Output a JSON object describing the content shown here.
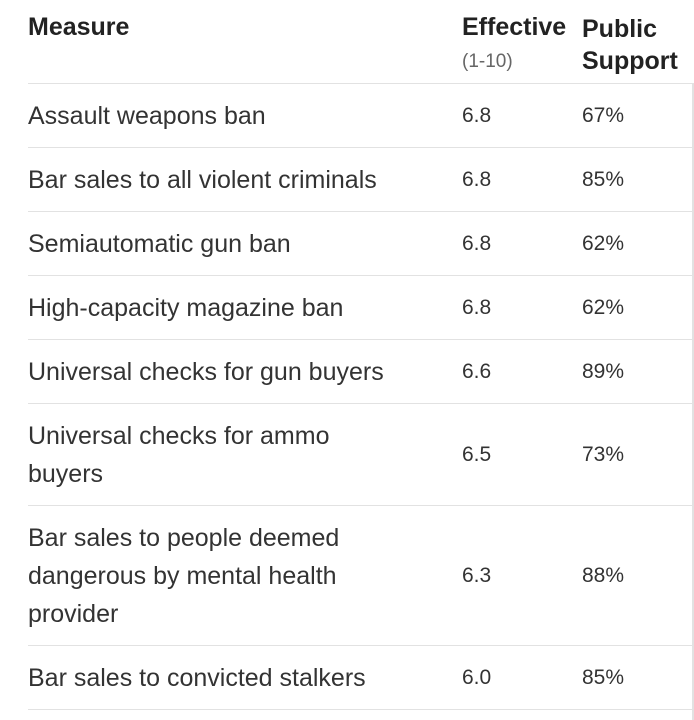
{
  "header": {
    "measure": "Measure",
    "effective": "Effective",
    "effective_scale": "(1-10)",
    "support_line1": "Public",
    "support_line2": "Support"
  },
  "chart_data": {
    "type": "table",
    "columns": [
      "Measure",
      "Effective (1-10)",
      "Public Support"
    ],
    "rows": [
      {
        "measure": "Assault weapons ban",
        "effective": "6.8",
        "support": "67%"
      },
      {
        "measure": "Bar sales to all violent criminals",
        "effective": "6.8",
        "support": "85%"
      },
      {
        "measure": "Semiautomatic gun ban",
        "effective": "6.8",
        "support": "62%"
      },
      {
        "measure": "High-capacity magazine ban",
        "effective": "6.8",
        "support": "62%"
      },
      {
        "measure": "Universal checks for gun buyers",
        "effective": "6.6",
        "support": "89%"
      },
      {
        "measure": "Universal checks for ammo buyers",
        "effective": "6.5",
        "support": "73%"
      },
      {
        "measure": "Bar sales to people deemed dangerous by mental health provider",
        "effective": "6.3",
        "support": "88%"
      },
      {
        "measure": "Bar sales to convicted stalkers",
        "effective": "6.0",
        "support": "85%"
      }
    ]
  }
}
